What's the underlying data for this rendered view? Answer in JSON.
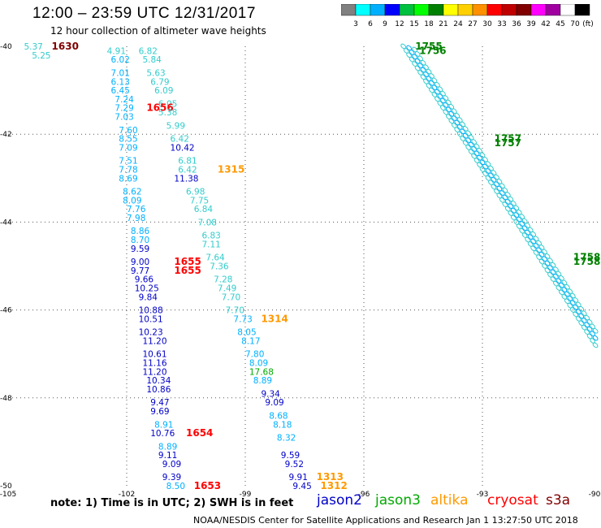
{
  "header": {
    "title": "12:00 – 23:59 UTC 12/31/2017",
    "subtitle": "12 hour collection of altimeter wave heights"
  },
  "colorbar": {
    "unit": "(ft)",
    "colors": [
      "#808080",
      "#00ffff",
      "#00b0ff",
      "#0000ff",
      "#00c040",
      "#00ff00",
      "#008000",
      "#ffff00",
      "#ffd000",
      "#ff9000",
      "#ff0000",
      "#c00000",
      "#800000",
      "#ff00ff",
      "#a000a0",
      "#ffffff",
      "#000000"
    ],
    "labels": [
      "3",
      "6",
      "9",
      "12",
      "15",
      "18",
      "21",
      "24",
      "27",
      "30",
      "33",
      "36",
      "39",
      "42",
      "45",
      "70"
    ]
  },
  "axes": {
    "lon_labels": [
      "-105",
      "-102",
      "-99",
      "-96",
      "-93",
      "-90"
    ],
    "lat_labels": [
      "-40",
      "-42",
      "-44",
      "-46",
      "-48",
      "-50"
    ]
  },
  "labels": [
    {
      "t": "5.37",
      "lon": -104.6,
      "lat": -40.0,
      "c": "#33cccc"
    },
    {
      "t": "5.25",
      "lon": -104.4,
      "lat": -40.2,
      "c": "#33cccc"
    },
    {
      "t": "1630",
      "lon": -103.9,
      "lat": -40.0,
      "c": "#800000",
      "b": true
    },
    {
      "t": "4.91",
      "lon": -102.5,
      "lat": -40.1,
      "c": "#33cccc"
    },
    {
      "t": "6.82",
      "lon": -101.7,
      "lat": -40.1,
      "c": "#33cccc"
    },
    {
      "t": "6.02",
      "lon": -102.4,
      "lat": -40.3,
      "c": "#00b0ff"
    },
    {
      "t": "5.84",
      "lon": -101.6,
      "lat": -40.3,
      "c": "#33cccc"
    },
    {
      "t": "7.01",
      "lon": -102.4,
      "lat": -40.6,
      "c": "#00b0ff"
    },
    {
      "t": "5.63",
      "lon": -101.5,
      "lat": -40.6,
      "c": "#33cccc"
    },
    {
      "t": "6.13",
      "lon": -102.4,
      "lat": -40.8,
      "c": "#00b0ff"
    },
    {
      "t": "6.79",
      "lon": -101.4,
      "lat": -40.8,
      "c": "#33cccc"
    },
    {
      "t": "6.45",
      "lon": -102.4,
      "lat": -41.0,
      "c": "#00b0ff"
    },
    {
      "t": "6.09",
      "lon": -101.3,
      "lat": -41.0,
      "c": "#33cccc"
    },
    {
      "t": "7.24",
      "lon": -102.3,
      "lat": -41.2,
      "c": "#00b0ff"
    },
    {
      "t": "6.05",
      "lon": -101.2,
      "lat": -41.3,
      "c": "#33cccc"
    },
    {
      "t": "7.29",
      "lon": -102.3,
      "lat": -41.4,
      "c": "#00b0ff"
    },
    {
      "t": "1656",
      "lon": -101.5,
      "lat": -41.4,
      "c": "#ff0000",
      "b": true
    },
    {
      "t": "5.38",
      "lon": -101.2,
      "lat": -41.5,
      "c": "#33cccc"
    },
    {
      "t": "7.03",
      "lon": -102.3,
      "lat": -41.6,
      "c": "#00b0ff"
    },
    {
      "t": "5.99",
      "lon": -101.0,
      "lat": -41.8,
      "c": "#33cccc"
    },
    {
      "t": "7.60",
      "lon": -102.2,
      "lat": -41.9,
      "c": "#00b0ff"
    },
    {
      "t": "8.55",
      "lon": -102.2,
      "lat": -42.1,
      "c": "#00b0ff"
    },
    {
      "t": "6.42",
      "lon": -100.9,
      "lat": -42.1,
      "c": "#33cccc"
    },
    {
      "t": "7.09",
      "lon": -102.2,
      "lat": -42.3,
      "c": "#00b0ff"
    },
    {
      "t": "10.42",
      "lon": -100.9,
      "lat": -42.3,
      "c": "#0000c8"
    },
    {
      "t": "7.51",
      "lon": -102.2,
      "lat": -42.6,
      "c": "#00b0ff"
    },
    {
      "t": "6.81",
      "lon": -100.7,
      "lat": -42.6,
      "c": "#33cccc"
    },
    {
      "t": "7.78",
      "lon": -102.2,
      "lat": -42.8,
      "c": "#00b0ff"
    },
    {
      "t": "6.42",
      "lon": -100.7,
      "lat": -42.8,
      "c": "#33cccc"
    },
    {
      "t": "1315",
      "lon": -99.7,
      "lat": -42.8,
      "c": "#ff9900",
      "b": true
    },
    {
      "t": "8.69",
      "lon": -102.2,
      "lat": -43.0,
      "c": "#00b0ff"
    },
    {
      "t": "11.38",
      "lon": -100.8,
      "lat": -43.0,
      "c": "#0000c8"
    },
    {
      "t": "8.62",
      "lon": -102.1,
      "lat": -43.3,
      "c": "#00b0ff"
    },
    {
      "t": "6.98",
      "lon": -100.5,
      "lat": -43.3,
      "c": "#33cccc"
    },
    {
      "t": "8.09",
      "lon": -102.1,
      "lat": -43.5,
      "c": "#00b0ff"
    },
    {
      "t": "7.75",
      "lon": -100.4,
      "lat": -43.5,
      "c": "#33cccc"
    },
    {
      "t": "7.76",
      "lon": -102.0,
      "lat": -43.7,
      "c": "#00b0ff"
    },
    {
      "t": "6.84",
      "lon": -100.3,
      "lat": -43.7,
      "c": "#33cccc"
    },
    {
      "t": "7.98",
      "lon": -102.0,
      "lat": -43.9,
      "c": "#00b0ff"
    },
    {
      "t": "7.08",
      "lon": -100.2,
      "lat": -44.0,
      "c": "#33cccc"
    },
    {
      "t": "8.86",
      "lon": -101.9,
      "lat": -44.2,
      "c": "#00b0ff"
    },
    {
      "t": "6.83",
      "lon": -100.1,
      "lat": -44.3,
      "c": "#33cccc"
    },
    {
      "t": "8.70",
      "lon": -101.9,
      "lat": -44.4,
      "c": "#00b0ff"
    },
    {
      "t": "7.11",
      "lon": -100.1,
      "lat": -44.5,
      "c": "#33cccc"
    },
    {
      "t": "9.59",
      "lon": -101.9,
      "lat": -44.6,
      "c": "#0000c8"
    },
    {
      "t": "7.64",
      "lon": -100.0,
      "lat": -44.8,
      "c": "#33cccc"
    },
    {
      "t": "9.00",
      "lon": -101.9,
      "lat": -44.9,
      "c": "#0000c8"
    },
    {
      "t": "1655",
      "lon": -100.8,
      "lat": -44.9,
      "c": "#ff0000",
      "b": true
    },
    {
      "t": "7.36",
      "lon": -99.9,
      "lat": -45.0,
      "c": "#33cccc"
    },
    {
      "t": "9.77",
      "lon": -101.9,
      "lat": -45.1,
      "c": "#0000c8"
    },
    {
      "t": "1655",
      "lon": -100.8,
      "lat": -45.1,
      "c": "#ff0000",
      "b": true
    },
    {
      "t": "9.66",
      "lon": -101.8,
      "lat": -45.3,
      "c": "#0000c8"
    },
    {
      "t": "7.28",
      "lon": -99.8,
      "lat": -45.3,
      "c": "#33cccc"
    },
    {
      "t": "10.25",
      "lon": -101.8,
      "lat": -45.5,
      "c": "#0000c8"
    },
    {
      "t": "7.49",
      "lon": -99.7,
      "lat": -45.5,
      "c": "#33cccc"
    },
    {
      "t": "9.84",
      "lon": -101.7,
      "lat": -45.7,
      "c": "#0000c8"
    },
    {
      "t": "7.70",
      "lon": -99.6,
      "lat": -45.7,
      "c": "#33cccc"
    },
    {
      "t": "10.88",
      "lon": -101.7,
      "lat": -46.0,
      "c": "#0000c8"
    },
    {
      "t": "7.70",
      "lon": -99.5,
      "lat": -46.0,
      "c": "#33cccc"
    },
    {
      "t": "10.51",
      "lon": -101.7,
      "lat": -46.2,
      "c": "#0000c8"
    },
    {
      "t": "7.73",
      "lon": -99.3,
      "lat": -46.2,
      "c": "#00b0ff"
    },
    {
      "t": "1314",
      "lon": -98.6,
      "lat": -46.2,
      "c": "#ff9900",
      "b": true
    },
    {
      "t": "10.23",
      "lon": -101.7,
      "lat": -46.5,
      "c": "#0000c8"
    },
    {
      "t": "8.05",
      "lon": -99.2,
      "lat": -46.5,
      "c": "#00b0ff"
    },
    {
      "t": "11.20",
      "lon": -101.6,
      "lat": -46.7,
      "c": "#0000c8"
    },
    {
      "t": "8.17",
      "lon": -99.1,
      "lat": -46.7,
      "c": "#00b0ff"
    },
    {
      "t": "10.61",
      "lon": -101.6,
      "lat": -47.0,
      "c": "#0000c8"
    },
    {
      "t": "7.80",
      "lon": -99.0,
      "lat": -47.0,
      "c": "#00b0ff"
    },
    {
      "t": "11.16",
      "lon": -101.6,
      "lat": -47.2,
      "c": "#0000c8"
    },
    {
      "t": "8.09",
      "lon": -98.9,
      "lat": -47.2,
      "c": "#00b0ff"
    },
    {
      "t": "11.20",
      "lon": -101.6,
      "lat": -47.4,
      "c": "#0000c8"
    },
    {
      "t": "17.68",
      "lon": -98.9,
      "lat": -47.4,
      "c": "#00aa00"
    },
    {
      "t": "10.34",
      "lon": -101.5,
      "lat": -47.6,
      "c": "#0000c8"
    },
    {
      "t": "8.89",
      "lon": -98.8,
      "lat": -47.6,
      "c": "#00b0ff"
    },
    {
      "t": "10.86",
      "lon": -101.5,
      "lat": -47.8,
      "c": "#0000c8"
    },
    {
      "t": "9.34",
      "lon": -98.6,
      "lat": -47.9,
      "c": "#0000c8"
    },
    {
      "t": "9.47",
      "lon": -101.4,
      "lat": -48.1,
      "c": "#0000c8"
    },
    {
      "t": "9.09",
      "lon": -98.5,
      "lat": -48.1,
      "c": "#0000c8"
    },
    {
      "t": "9.69",
      "lon": -101.4,
      "lat": -48.3,
      "c": "#0000c8"
    },
    {
      "t": "8.68",
      "lon": -98.4,
      "lat": -48.4,
      "c": "#00b0ff"
    },
    {
      "t": "8.91",
      "lon": -101.3,
      "lat": -48.6,
      "c": "#00b0ff"
    },
    {
      "t": "8.18",
      "lon": -98.3,
      "lat": -48.6,
      "c": "#00b0ff"
    },
    {
      "t": "10.76",
      "lon": -101.4,
      "lat": -48.8,
      "c": "#0000c8"
    },
    {
      "t": "1654",
      "lon": -100.5,
      "lat": -48.8,
      "c": "#ff0000",
      "b": true
    },
    {
      "t": "8.32",
      "lon": -98.2,
      "lat": -48.9,
      "c": "#00b0ff"
    },
    {
      "t": "8.89",
      "lon": -101.2,
      "lat": -49.1,
      "c": "#00b0ff"
    },
    {
      "t": "9.59",
      "lon": -98.1,
      "lat": -49.3,
      "c": "#0000c8"
    },
    {
      "t": "9.11",
      "lon": -101.2,
      "lat": -49.3,
      "c": "#0000c8"
    },
    {
      "t": "9.52",
      "lon": -98.0,
      "lat": -49.5,
      "c": "#0000c8"
    },
    {
      "t": "9.09",
      "lon": -101.1,
      "lat": -49.5,
      "c": "#0000c8"
    },
    {
      "t": "9.39",
      "lon": -101.1,
      "lat": -49.8,
      "c": "#0000c8"
    },
    {
      "t": "9.91",
      "lon": -97.9,
      "lat": -49.8,
      "c": "#0000c8"
    },
    {
      "t": "1313",
      "lon": -97.2,
      "lat": -49.8,
      "c": "#ff9900",
      "b": true
    },
    {
      "t": "8.50",
      "lon": -101.0,
      "lat": -50.0,
      "c": "#00b0ff"
    },
    {
      "t": "1653",
      "lon": -100.3,
      "lat": -50.0,
      "c": "#ff0000",
      "b": true
    },
    {
      "t": "9.45",
      "lon": -97.8,
      "lat": -50.0,
      "c": "#0000c8"
    },
    {
      "t": "1312",
      "lon": -97.1,
      "lat": -50.0,
      "c": "#ff9900",
      "b": true
    },
    {
      "t": "1755",
      "lon": -94.7,
      "lat": -40.0,
      "c": "#008000",
      "b": true
    },
    {
      "t": "1756",
      "lon": -94.6,
      "lat": -40.1,
      "c": "#008000",
      "b": true
    },
    {
      "t": "1757",
      "lon": -92.7,
      "lat": -42.1,
      "c": "#008000",
      "b": true
    },
    {
      "t": "1757",
      "lon": -92.7,
      "lat": -42.2,
      "c": "#008000",
      "b": true
    },
    {
      "t": "1758",
      "lon": -90.7,
      "lat": -44.8,
      "c": "#008000",
      "b": true
    },
    {
      "t": "1758",
      "lon": -90.7,
      "lat": -44.9,
      "c": "#008000",
      "b": true
    }
  ],
  "legend": {
    "note": "note:  1) Time is in UTC;  2) SWH is in feet",
    "satellites": [
      {
        "name": "jason2",
        "color": "#0000c8"
      },
      {
        "name": "jason3",
        "color": "#00aa00"
      },
      {
        "name": "altika",
        "color": "#ff9900"
      },
      {
        "name": "cryosat",
        "color": "#ff0000"
      },
      {
        "name": "s3a",
        "color": "#800000"
      }
    ],
    "credit": "NOAA/NESDIS Center for Satellite Applications and Research    Jan  1 13:27:50 UTC 2018"
  }
}
